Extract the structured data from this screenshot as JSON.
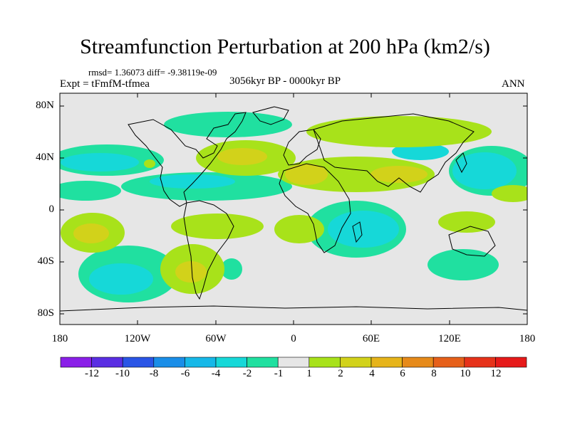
{
  "map": {
    "title": "Streamfunction Perturbation at 200 hPa (km2/s)",
    "stats": "rmsd= 1.36073 diff= -9.38119e-09",
    "experiment": "Expt = tFmfM-tfmea",
    "period": "3056kyr BP - 0000kyr BP",
    "season": "ANN",
    "lat_labels": [
      "80N",
      "40N",
      "0",
      "40S",
      "80S"
    ],
    "lon_labels": [
      "180",
      "120W",
      "60W",
      "0",
      "60E",
      "120E",
      "180"
    ],
    "colorbar": {
      "labels": [
        "-12",
        "-10",
        "-8",
        "-6",
        "-4",
        "-2",
        "-1",
        "1",
        "2",
        "4",
        "6",
        "8",
        "10",
        "12"
      ],
      "colors": [
        "#8a1fe8",
        "#5a2ee3",
        "#2a55e6",
        "#1a8ee8",
        "#16b8e8",
        "#16d8d8",
        "#20e0a0",
        "#e6e6e6",
        "#a8e21a",
        "#d2d21a",
        "#e6b41a",
        "#e68a1a",
        "#e6601a",
        "#e6321a",
        "#e61a1a"
      ]
    }
  }
}
